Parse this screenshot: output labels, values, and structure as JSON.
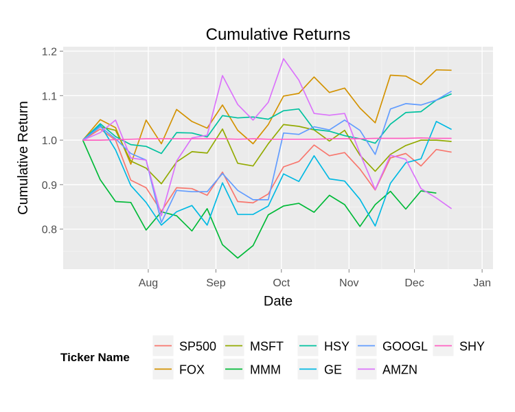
{
  "chart_data": {
    "type": "line",
    "title": "Cumulative Returns",
    "xlabel": "Date",
    "ylabel": "Cumulative Return",
    "x_ticks": [
      "Aug",
      "Sep",
      "Oct",
      "Nov",
      "Dec",
      "Jan"
    ],
    "y_ticks": [
      "0.8",
      "0.9",
      "1.0",
      "1.1",
      "1.2"
    ],
    "ylim": [
      0.71,
      1.21
    ],
    "xlim": [
      "2015-06-23",
      "2016-01-06"
    ],
    "grid": true,
    "legend_position": "bottom",
    "legend_title": "Ticker Name",
    "x": [
      "2015-07-02",
      "2015-07-10",
      "2015-07-17",
      "2015-07-24",
      "2015-07-31",
      "2015-08-07",
      "2015-08-14",
      "2015-08-21",
      "2015-08-28",
      "2015-09-04",
      "2015-09-11",
      "2015-09-18",
      "2015-09-25",
      "2015-10-02",
      "2015-10-09",
      "2015-10-16",
      "2015-10-23",
      "2015-10-30",
      "2015-11-06",
      "2015-11-13",
      "2015-11-20",
      "2015-11-27",
      "2015-12-04",
      "2015-12-11",
      "2015-12-18",
      "2015-12-24",
      "2015-12-31"
    ],
    "series": [
      {
        "name": "SP500",
        "color": "#F8766D",
        "values": [
          1.0,
          1.025,
          1.0,
          0.91,
          0.893,
          0.84,
          0.893,
          0.891,
          0.876,
          0.928,
          0.862,
          0.859,
          0.879,
          0.94,
          0.952,
          0.989,
          0.965,
          0.972,
          0.935,
          0.888,
          0.96,
          0.97,
          0.942,
          0.979,
          0.973,
          null,
          null
        ]
      },
      {
        "name": "FOX",
        "color": "#D39200",
        "values": [
          1.0,
          1.046,
          1.028,
          0.946,
          1.045,
          0.992,
          1.069,
          1.042,
          1.027,
          1.079,
          1.022,
          0.992,
          1.035,
          1.099,
          1.105,
          1.142,
          1.107,
          1.117,
          1.072,
          1.039,
          1.146,
          1.144,
          1.125,
          1.158,
          1.157,
          null,
          null
        ]
      },
      {
        "name": "MSFT",
        "color": "#93AA00",
        "values": [
          1.0,
          1.03,
          1.022,
          0.953,
          0.937,
          0.902,
          0.951,
          0.974,
          0.971,
          1.025,
          0.948,
          0.942,
          0.992,
          1.035,
          1.031,
          1.023,
          0.998,
          1.022,
          0.966,
          0.93,
          0.968,
          0.988,
          1.0,
          1.0,
          0.997,
          null,
          null
        ]
      },
      {
        "name": "MMM",
        "color": "#00BA38",
        "values": [
          1.0,
          0.911,
          0.862,
          0.86,
          0.798,
          0.839,
          0.83,
          0.796,
          0.846,
          0.765,
          0.735,
          0.763,
          0.832,
          0.852,
          0.858,
          0.838,
          0.876,
          0.855,
          0.806,
          0.855,
          0.885,
          0.845,
          0.886,
          0.881,
          null,
          null,
          null
        ]
      },
      {
        "name": "HSY",
        "color": "#00C19F",
        "values": [
          1.0,
          1.037,
          1.008,
          0.99,
          0.986,
          0.97,
          1.017,
          1.016,
          1.007,
          1.055,
          1.05,
          1.052,
          1.047,
          1.066,
          1.07,
          1.024,
          1.02,
          1.01,
          1.003,
          0.993,
          1.036,
          1.062,
          1.064,
          1.09,
          1.104,
          null,
          null
        ]
      },
      {
        "name": "GE",
        "color": "#00B9E3",
        "values": [
          1.0,
          1.034,
          0.978,
          0.898,
          0.86,
          0.809,
          0.839,
          0.853,
          0.809,
          0.904,
          0.833,
          0.833,
          0.852,
          0.924,
          0.907,
          0.965,
          0.913,
          0.908,
          0.867,
          0.807,
          0.903,
          0.949,
          0.958,
          1.042,
          1.024,
          null,
          null
        ]
      },
      {
        "name": "GOOGL",
        "color": "#619CFF",
        "values": [
          1.0,
          1.03,
          1.003,
          0.97,
          0.955,
          0.815,
          0.887,
          0.884,
          0.884,
          0.925,
          0.887,
          0.866,
          0.866,
          1.016,
          1.013,
          1.03,
          1.023,
          1.045,
          1.022,
          0.968,
          1.07,
          1.082,
          1.079,
          1.09,
          1.11,
          null,
          null
        ]
      },
      {
        "name": "AMZN",
        "color": "#DB72FB",
        "values": [
          1.0,
          1.017,
          1.045,
          0.96,
          0.955,
          0.83,
          0.953,
          1.005,
          1.011,
          1.145,
          1.08,
          1.045,
          1.085,
          1.183,
          1.135,
          1.06,
          1.056,
          1.06,
          0.97,
          0.889,
          0.966,
          0.957,
          0.891,
          0.87,
          0.846,
          null,
          null
        ]
      },
      {
        "name": "SHY",
        "color": "#FF61C3",
        "values": [
          1.0,
          1.0,
          1.001,
          1.002,
          1.003,
          1.003,
          1.003,
          1.003,
          1.003,
          1.003,
          1.002,
          1.003,
          1.002,
          1.002,
          1.002,
          1.002,
          1.003,
          1.003,
          1.003,
          1.004,
          1.004,
          1.004,
          1.005,
          1.004,
          1.004,
          null,
          null
        ]
      }
    ]
  },
  "legend_layout": [
    [
      "SP500",
      "MSFT",
      "HSY",
      "GOOGL",
      "SHY"
    ],
    [
      "FOX",
      "MMM",
      "GE",
      "AMZN"
    ]
  ]
}
